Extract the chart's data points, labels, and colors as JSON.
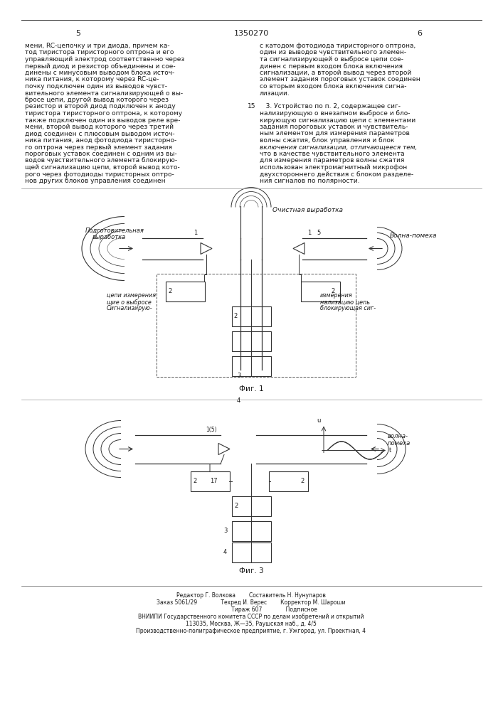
{
  "page_width": 7.07,
  "page_height": 10.0,
  "bg_color": "#ffffff",
  "text_color": "#1a1a1a",
  "header_number": "1350270",
  "col_left_page": "5",
  "col_right_page": "6",
  "font_size_body": 6.5,
  "font_size_small": 5.5,
  "body_left_col": [
    "мени, RC-цепочку и три диода, причем ка-",
    "тод тиристора тиристорного оптрона и его",
    "управляющий электрод соответственно через",
    "первый диод и резистор объединены и сое-",
    "динены с минусовым выводом блока источ-",
    "ника питания, к которому через RC-це-",
    "почку подключен один из выводов чувст-",
    "вительного элемента сигнализирующей о вы-",
    "бросе цепи, другой вывод которого через",
    "резистор и второй диод подключен к аноду",
    "тиристора тиристорного оптрона, к которому",
    "также подключен один из выводов реле вре-",
    "мени, второй вывод которого через третий",
    "диод соединен с плюсовым выводом источ-",
    "ника питания, анод фотодиода тиристорно-",
    "го оптрона через первый элемент задания",
    "пороговых уставок соединен с одним из вы-",
    "водов чувствительного элемента блокирую-",
    "щей сигнализацию цепи, второй вывод кото-",
    "рого через фотодиоды тиристорных оптро-",
    "нов других блоков управления соединен"
  ],
  "body_right_col": [
    "с катодом фотодиода тиристорного оптрона,",
    "один из выводов чувствительного элемен-",
    "та сигнализирующей о выбросе цепи сое-",
    "динен с первым входом блока включения",
    "сигнализации, а второй вывод через второй",
    "элемент задания пороговых уставок соединен",
    "со вторым входом блока включения сигна-",
    "лизации.",
    "",
    "   3. Устройство по п. 2, содержащее сиг-",
    "нализирующую о внезапном выбросе и бло-",
    "кирующую сигнализацию цепи с элементами",
    "задания пороговых уставок и чувствитель-",
    "ным элементом для измерения параметров",
    "волны сжатия, блок управления и блок",
    "включения сигнализации, отличающееся тем,",
    "что в качестве чувствительного элемента",
    "для измерения параметров волны сжатия",
    "использован электромагнитный микрофон",
    "двухстороннего действия с блоком разделе-",
    "ния сигналов по полярности."
  ],
  "footer_lines": [
    "Редактор Г. Волкова        Составитель Н. Нунупаров",
    "Заказ 5061/29              Техред И. Верес        Корректор М. Шароши",
    "                           Тираж 607              Подписное",
    "ВНИИПИ Государственного комитета СССР по делам изобретений и открытий",
    "113035, Москва, Ж—35, Раушская наб., д. 4/5",
    "Производственно-полиграфическое предприятие, г. Ужгород, ул. Проектная, 4"
  ],
  "fig1_caption": "Фиг. 1",
  "fig3_caption": "Фиг. 3",
  "label_15": "15"
}
